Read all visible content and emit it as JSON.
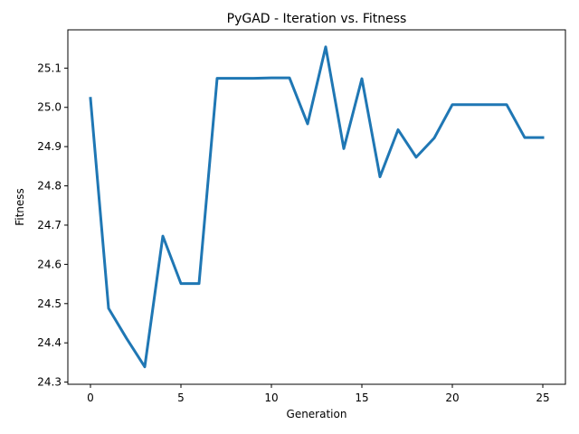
{
  "chart_data": {
    "type": "line",
    "title": "PyGAD - Iteration vs. Fitness",
    "xlabel": "Generation",
    "ylabel": "Fitness",
    "xlim": [
      -1.25,
      26.25
    ],
    "ylim": [
      24.2945,
      25.1975
    ],
    "xticks": [
      0,
      5,
      10,
      15,
      20,
      25
    ],
    "yticks": [
      24.3,
      24.4,
      24.5,
      24.6,
      24.7,
      24.8,
      24.9,
      25.0,
      25.1
    ],
    "xtick_labels": [
      "0",
      "5",
      "10",
      "15",
      "20",
      "25"
    ],
    "ytick_labels": [
      "24.3",
      "24.4",
      "24.5",
      "24.6",
      "24.7",
      "24.8",
      "24.9",
      "25.0",
      "25.1"
    ],
    "grid": false,
    "series": [
      {
        "color": "#1f77b4",
        "x": [
          0,
          1,
          2,
          3,
          4,
          5,
          6,
          7,
          8,
          9,
          10,
          11,
          12,
          13,
          14,
          15,
          16,
          17,
          18,
          19,
          20,
          21,
          22,
          23,
          24,
          25
        ],
        "y": [
          25.023,
          24.488,
          24.411,
          24.339,
          24.672,
          24.551,
          24.551,
          25.074,
          25.074,
          25.074,
          25.075,
          25.075,
          24.958,
          25.154,
          24.895,
          25.073,
          24.823,
          24.943,
          24.873,
          24.922,
          25.007,
          25.007,
          25.007,
          25.007,
          24.923,
          24.923
        ]
      }
    ]
  }
}
